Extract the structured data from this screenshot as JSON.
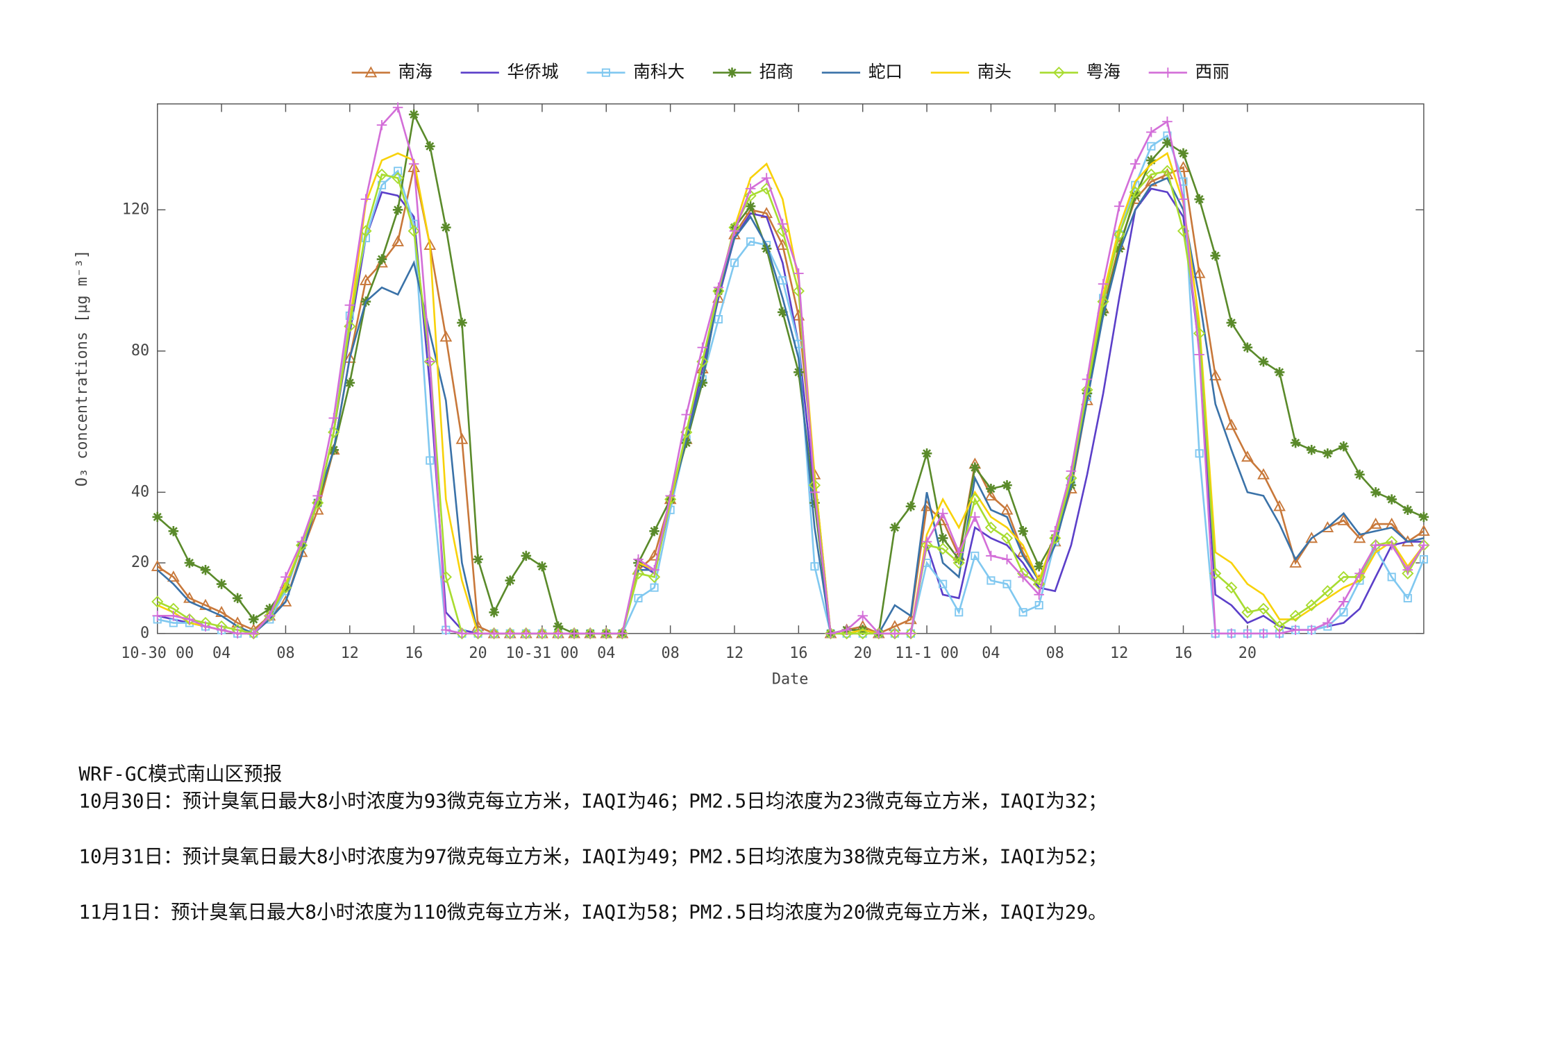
{
  "chart_data": {
    "type": "line",
    "x_label": "Date",
    "y_label": "O₃ concentrations [µg m⁻³]",
    "xlim": [
      0,
      79
    ],
    "ylim": [
      0,
      150
    ],
    "xticks": [
      {
        "value": 0,
        "label": "10-30 00"
      },
      {
        "value": 4,
        "label": "04"
      },
      {
        "value": 8,
        "label": "08"
      },
      12,
      16,
      20,
      {
        "value": 24,
        "label": "10-31 00"
      },
      {
        "value": 28,
        "label": "04"
      },
      {
        "value": 32,
        "label": "08"
      },
      {
        "value": 36,
        "label": "12"
      },
      {
        "value": 40,
        "label": "16"
      },
      {
        "value": 44,
        "label": "20"
      },
      {
        "value": 48,
        "label": "11-1 00"
      },
      {
        "value": 52,
        "label": "04"
      },
      {
        "value": 56,
        "label": "08"
      },
      {
        "value": 60,
        "label": "12"
      },
      {
        "value": 64,
        "label": "16"
      },
      {
        "value": 68,
        "label": "20"
      }
    ],
    "yticks": [
      0,
      20,
      40,
      80,
      120
    ],
    "grid": false,
    "legend": "top",
    "x": [
      0,
      1,
      2,
      3,
      4,
      5,
      6,
      7,
      8,
      9,
      10,
      11,
      12,
      13,
      14,
      15,
      16,
      17,
      18,
      19,
      20,
      21,
      22,
      23,
      24,
      25,
      26,
      27,
      28,
      29,
      30,
      31,
      32,
      33,
      34,
      35,
      36,
      37,
      38,
      39,
      40,
      41,
      42,
      43,
      44,
      45,
      46,
      47,
      48,
      49,
      50,
      51,
      52,
      53,
      54,
      55,
      56,
      57,
      58,
      59,
      60,
      61,
      62,
      63,
      64,
      65,
      66,
      67,
      68,
      69,
      70,
      71,
      72,
      73,
      74,
      75,
      76,
      77,
      78,
      79
    ],
    "series": [
      {
        "name": "南海",
        "color": "#c8783a",
        "marker": "triangle",
        "values": [
          19,
          16,
          10,
          8,
          6,
          3,
          1,
          5,
          9,
          23,
          35,
          52,
          78,
          100,
          105,
          111,
          132,
          110,
          84,
          55,
          2,
          0,
          0,
          0,
          0,
          0,
          0,
          0,
          0,
          0,
          18,
          22,
          38,
          55,
          75,
          95,
          113,
          120,
          119,
          110,
          90,
          45,
          0,
          1,
          2,
          0,
          2,
          4,
          36,
          32,
          22,
          48,
          39,
          35,
          23,
          15,
          26,
          41,
          66,
          92,
          110,
          123,
          128,
          130,
          132,
          102,
          73,
          59,
          50,
          45,
          36,
          20,
          27,
          30,
          32,
          27,
          31,
          31,
          26,
          29
        ]
      },
      {
        "name": "华侨城",
        "color": "#5b3fc9",
        "marker": "none",
        "values": [
          5,
          4,
          3,
          2,
          1,
          0,
          0,
          5,
          12,
          25,
          37,
          57,
          85,
          112,
          125,
          124,
          118,
          70,
          6,
          1,
          0,
          0,
          0,
          0,
          0,
          0,
          0,
          0,
          0,
          0,
          20,
          17,
          37,
          55,
          75,
          95,
          112,
          119,
          118,
          105,
          82,
          40,
          0,
          0,
          0,
          0,
          0,
          0,
          25,
          11,
          10,
          30,
          27,
          25,
          20,
          13,
          12,
          25,
          45,
          68,
          95,
          120,
          126,
          125,
          118,
          80,
          11,
          8,
          3,
          5,
          2,
          1,
          1,
          2,
          3,
          7,
          16,
          25,
          26,
          26
        ]
      },
      {
        "name": "南科大",
        "color": "#80c8f0",
        "marker": "square",
        "values": [
          4,
          3,
          3,
          2,
          1,
          0,
          0,
          4,
          12,
          25,
          37,
          57,
          90,
          112,
          127,
          131,
          116,
          49,
          1,
          0,
          0,
          0,
          0,
          0,
          0,
          0,
          0,
          0,
          0,
          0,
          10,
          13,
          35,
          55,
          72,
          89,
          105,
          111,
          110,
          100,
          82,
          19,
          0,
          0,
          0,
          0,
          0,
          0,
          20,
          14,
          6,
          22,
          15,
          14,
          6,
          8,
          26,
          43,
          67,
          95,
          113,
          127,
          138,
          141,
          128,
          51,
          0,
          0,
          0,
          0,
          0,
          1,
          1,
          2,
          6,
          15,
          24,
          16,
          10,
          21
        ]
      },
      {
        "name": "招商",
        "color": "#5a8a2a",
        "marker": "star",
        "values": [
          33,
          29,
          20,
          18,
          14,
          10,
          4,
          7,
          13,
          25,
          37,
          52,
          71,
          94,
          106,
          120,
          147,
          138,
          115,
          88,
          21,
          6,
          15,
          22,
          19,
          2,
          0,
          0,
          0,
          0,
          20,
          29,
          38,
          54,
          71,
          97,
          115,
          121,
          109,
          91,
          74,
          37,
          0,
          1,
          1,
          0,
          30,
          36,
          51,
          27,
          21,
          47,
          41,
          42,
          29,
          19,
          27,
          42,
          68,
          91,
          109,
          124,
          134,
          139,
          136,
          123,
          107,
          88,
          81,
          77,
          74,
          54,
          52,
          51,
          53,
          45,
          40,
          38,
          35,
          33
        ]
      },
      {
        "name": "蛇口",
        "color": "#3a72a8",
        "marker": "none",
        "values": [
          18,
          14,
          9,
          7,
          5,
          2,
          0,
          4,
          9,
          22,
          38,
          52,
          78,
          94,
          98,
          96,
          105,
          85,
          66,
          20,
          0,
          0,
          0,
          0,
          0,
          0,
          0,
          0,
          0,
          0,
          18,
          18,
          37,
          55,
          72,
          96,
          112,
          118,
          110,
          95,
          78,
          30,
          0,
          0,
          1,
          0,
          8,
          5,
          40,
          20,
          16,
          44,
          35,
          33,
          22,
          15,
          25,
          42,
          66,
          90,
          108,
          120,
          127,
          129,
          120,
          95,
          65,
          52,
          40,
          39,
          31,
          21,
          27,
          30,
          34,
          28,
          29,
          30,
          26,
          27
        ]
      },
      {
        "name": "南头",
        "color": "#f8d20a",
        "marker": "none",
        "values": [
          8,
          6,
          3,
          2,
          1,
          0,
          0,
          5,
          14,
          25,
          37,
          57,
          88,
          122,
          134,
          136,
          134,
          110,
          38,
          15,
          0,
          0,
          0,
          0,
          0,
          0,
          0,
          0,
          0,
          0,
          20,
          18,
          37,
          57,
          77,
          97,
          115,
          129,
          133,
          123,
          100,
          45,
          0,
          0,
          1,
          0,
          0,
          0,
          28,
          38,
          30,
          40,
          33,
          30,
          25,
          15,
          28,
          44,
          70,
          96,
          115,
          128,
          133,
          136,
          122,
          88,
          23,
          20,
          14,
          11,
          4,
          4,
          7,
          10,
          13,
          15,
          23,
          26,
          19,
          25
        ]
      },
      {
        "name": "粤海",
        "color": "#a8dc30",
        "marker": "diamond",
        "values": [
          9,
          7,
          4,
          3,
          2,
          1,
          0,
          5,
          13,
          25,
          37,
          57,
          87,
          114,
          130,
          129,
          114,
          77,
          16,
          0,
          0,
          0,
          0,
          0,
          0,
          0,
          0,
          0,
          0,
          0,
          17,
          16,
          38,
          57,
          77,
          97,
          115,
          124,
          126,
          114,
          97,
          42,
          0,
          0,
          0,
          0,
          0,
          0,
          25,
          24,
          20,
          38,
          30,
          27,
          17,
          14,
          27,
          44,
          69,
          94,
          113,
          125,
          130,
          131,
          114,
          85,
          17,
          13,
          6,
          7,
          2,
          5,
          8,
          12,
          16,
          16,
          25,
          26,
          17,
          25
        ]
      },
      {
        "name": "西丽",
        "color": "#d36ed8",
        "marker": "plus",
        "values": [
          5,
          5,
          4,
          2,
          1,
          0,
          0,
          5,
          16,
          26,
          39,
          61,
          93,
          123,
          144,
          149,
          133,
          77,
          1,
          0,
          0,
          0,
          0,
          0,
          0,
          0,
          0,
          0,
          0,
          0,
          21,
          18,
          39,
          62,
          81,
          98,
          114,
          126,
          129,
          116,
          102,
          40,
          0,
          1,
          5,
          0,
          0,
          0,
          26,
          34,
          23,
          33,
          22,
          21,
          16,
          11,
          29,
          46,
          72,
          99,
          121,
          133,
          142,
          145,
          123,
          79,
          0,
          0,
          0,
          0,
          0,
          1,
          1,
          3,
          9,
          17,
          25,
          25,
          18,
          25
        ]
      }
    ]
  },
  "forecast": {
    "title": "WRF-GC模式南山区预报",
    "lines": [
      "10月30日：预计臭氧日最大8小时浓度为93微克每立方米，IAQI为46；PM2.5日均浓度为23微克每立方米，IAQI为32；",
      "10月31日：预计臭氧日最大8小时浓度为97微克每立方米，IAQI为49；PM2.5日均浓度为38微克每立方米，IAQI为52；",
      "11月1日：预计臭氧日最大8小时浓度为110微克每立方米，IAQI为58；PM2.5日均浓度为20微克每立方米，IAQI为29。"
    ]
  }
}
